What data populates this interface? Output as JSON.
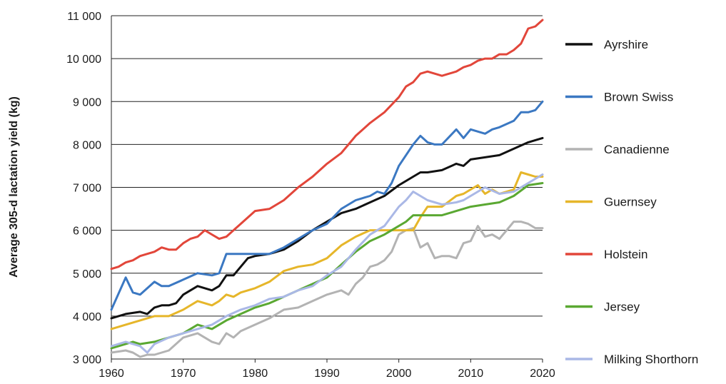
{
  "chart_data": {
    "type": "line",
    "title": "",
    "xlabel": "",
    "ylabel": "Average 305-d lactation yield (kg)",
    "xlim": [
      1960,
      2020
    ],
    "ylim": [
      3000,
      11000
    ],
    "xticks": [
      1960,
      1970,
      1980,
      1990,
      2000,
      2010,
      2020
    ],
    "xtick_labels": [
      "1960",
      "1970",
      "1980",
      "1990",
      "2000",
      "2010",
      "2020"
    ],
    "yticks": [
      3000,
      4000,
      5000,
      6000,
      7000,
      8000,
      9000,
      10000,
      11000
    ],
    "ytick_labels": [
      "3 000",
      "4 000",
      "5 000",
      "6 000",
      "7 000",
      "8 000",
      "9 000",
      "10 000",
      "11 000"
    ],
    "grid": "horizontal",
    "legend_position": "right",
    "series": [
      {
        "name": "Ayrshire",
        "color": "#111111",
        "x": [
          1960,
          1962,
          1964,
          1965,
          1966,
          1967,
          1968,
          1969,
          1970,
          1972,
          1973,
          1974,
          1975,
          1976,
          1977,
          1979,
          1980,
          1982,
          1984,
          1986,
          1988,
          1990,
          1992,
          1994,
          1996,
          1998,
          2000,
          2002,
          2003,
          2004,
          2006,
          2008,
          2009,
          2010,
          2012,
          2014,
          2016,
          2018,
          2019,
          2020
        ],
        "y": [
          3950,
          4050,
          4100,
          4050,
          4200,
          4250,
          4250,
          4300,
          4500,
          4700,
          4650,
          4600,
          4700,
          4950,
          4950,
          5350,
          5400,
          5450,
          5550,
          5750,
          6000,
          6200,
          6400,
          6500,
          6650,
          6800,
          7050,
          7250,
          7350,
          7350,
          7400,
          7550,
          7500,
          7650,
          7700,
          7750,
          7900,
          8050,
          8100,
          8150
        ]
      },
      {
        "name": "Brown Swiss",
        "color": "#3b78c2",
        "x": [
          1960,
          1962,
          1963,
          1964,
          1966,
          1967,
          1968,
          1970,
          1972,
          1974,
          1975,
          1976,
          1977,
          1978,
          1980,
          1982,
          1984,
          1986,
          1988,
          1990,
          1992,
          1994,
          1996,
          1997,
          1998,
          1999,
          2000,
          2002,
          2003,
          2004,
          2005,
          2006,
          2008,
          2009,
          2010,
          2012,
          2013,
          2014,
          2016,
          2017,
          2018,
          2019,
          2020
        ],
        "y": [
          4150,
          4900,
          4550,
          4500,
          4800,
          4700,
          4700,
          4850,
          5000,
          4950,
          5000,
          5450,
          5450,
          5450,
          5450,
          5450,
          5600,
          5800,
          6000,
          6150,
          6500,
          6700,
          6800,
          6900,
          6850,
          7100,
          7500,
          8000,
          8200,
          8050,
          8000,
          8000,
          8350,
          8150,
          8350,
          8250,
          8350,
          8400,
          8550,
          8750,
          8750,
          8800,
          9000
        ]
      },
      {
        "name": "Canadienne",
        "color": "#b3b3b3",
        "x": [
          1960,
          1962,
          1963,
          1964,
          1965,
          1966,
          1968,
          1970,
          1972,
          1974,
          1975,
          1976,
          1977,
          1978,
          1980,
          1982,
          1984,
          1986,
          1988,
          1990,
          1992,
          1993,
          1994,
          1995,
          1996,
          1997,
          1998,
          1999,
          2000,
          2001,
          2002,
          2003,
          2004,
          2005,
          2006,
          2007,
          2008,
          2009,
          2010,
          2011,
          2012,
          2013,
          2014,
          2015,
          2016,
          2017,
          2018,
          2019,
          2020
        ],
        "y": [
          3150,
          3200,
          3150,
          3050,
          3100,
          3100,
          3200,
          3500,
          3600,
          3400,
          3350,
          3600,
          3500,
          3650,
          3800,
          3950,
          4150,
          4200,
          4350,
          4500,
          4600,
          4500,
          4750,
          4900,
          5150,
          5200,
          5300,
          5500,
          5900,
          6000,
          6050,
          5600,
          5700,
          5350,
          5400,
          5400,
          5350,
          5700,
          5750,
          6100,
          5850,
          5900,
          5800,
          6000,
          6200,
          6200,
          6150,
          6050,
          6050
        ]
      },
      {
        "name": "Guernsey",
        "color": "#e6b62a",
        "x": [
          1960,
          1962,
          1964,
          1966,
          1968,
          1970,
          1972,
          1973,
          1974,
          1975,
          1976,
          1977,
          1978,
          1980,
          1982,
          1984,
          1986,
          1988,
          1990,
          1992,
          1994,
          1996,
          1998,
          2000,
          2002,
          2003,
          2004,
          2006,
          2008,
          2009,
          2010,
          2011,
          2012,
          2013,
          2014,
          2016,
          2017,
          2018,
          2019,
          2020
        ],
        "y": [
          3700,
          3800,
          3900,
          4000,
          4000,
          4150,
          4350,
          4300,
          4250,
          4350,
          4500,
          4450,
          4550,
          4650,
          4800,
          5050,
          5150,
          5200,
          5350,
          5650,
          5850,
          6000,
          6000,
          6000,
          6000,
          6300,
          6550,
          6550,
          6800,
          6850,
          6950,
          7050,
          6850,
          6950,
          6850,
          6950,
          7350,
          7300,
          7250,
          7250
        ]
      },
      {
        "name": "Holstein",
        "color": "#e2463a",
        "x": [
          1960,
          1961,
          1962,
          1963,
          1964,
          1965,
          1966,
          1967,
          1968,
          1969,
          1970,
          1971,
          1972,
          1973,
          1974,
          1975,
          1976,
          1977,
          1978,
          1980,
          1982,
          1984,
          1986,
          1988,
          1990,
          1992,
          1993,
          1994,
          1996,
          1998,
          2000,
          2001,
          2002,
          2003,
          2004,
          2005,
          2006,
          2007,
          2008,
          2009,
          2010,
          2011,
          2012,
          2013,
          2014,
          2015,
          2016,
          2017,
          2018,
          2019,
          2020
        ],
        "y": [
          5100,
          5150,
          5250,
          5300,
          5400,
          5450,
          5500,
          5600,
          5550,
          5550,
          5700,
          5800,
          5850,
          6000,
          5900,
          5800,
          5850,
          6000,
          6150,
          6450,
          6500,
          6700,
          7000,
          7250,
          7550,
          7800,
          8000,
          8200,
          8500,
          8750,
          9100,
          9350,
          9450,
          9650,
          9700,
          9650,
          9600,
          9650,
          9700,
          9800,
          9850,
          9950,
          10000,
          10000,
          10100,
          10100,
          10200,
          10350,
          10700,
          10750,
          10900
        ]
      },
      {
        "name": "Jersey",
        "color": "#5aa832",
        "x": [
          1960,
          1962,
          1963,
          1964,
          1966,
          1968,
          1970,
          1972,
          1974,
          1976,
          1978,
          1980,
          1982,
          1984,
          1986,
          1988,
          1990,
          1992,
          1994,
          1996,
          1998,
          2000,
          2001,
          2002,
          2004,
          2006,
          2008,
          2010,
          2012,
          2014,
          2016,
          2018,
          2020
        ],
        "y": [
          3250,
          3350,
          3400,
          3350,
          3400,
          3500,
          3600,
          3800,
          3700,
          3900,
          4050,
          4200,
          4300,
          4450,
          4600,
          4750,
          4900,
          5200,
          5500,
          5750,
          5900,
          6100,
          6200,
          6350,
          6350,
          6350,
          6450,
          6550,
          6600,
          6650,
          6800,
          7050,
          7100
        ]
      },
      {
        "name": "Milking Shorthorn",
        "color": "#aab8e6",
        "x": [
          1960,
          1962,
          1964,
          1965,
          1966,
          1968,
          1970,
          1972,
          1974,
          1976,
          1978,
          1980,
          1982,
          1984,
          1986,
          1988,
          1990,
          1992,
          1994,
          1996,
          1998,
          2000,
          2001,
          2002,
          2004,
          2006,
          2008,
          2009,
          2010,
          2012,
          2014,
          2016,
          2018,
          2019,
          2020
        ],
        "y": [
          3300,
          3400,
          3300,
          3150,
          3350,
          3500,
          3600,
          3700,
          3800,
          4000,
          4150,
          4250,
          4400,
          4450,
          4600,
          4700,
          4950,
          5150,
          5550,
          5900,
          6100,
          6550,
          6700,
          6900,
          6700,
          6600,
          6650,
          6700,
          6800,
          7000,
          6850,
          6900,
          7100,
          7200,
          7300
        ]
      }
    ]
  }
}
